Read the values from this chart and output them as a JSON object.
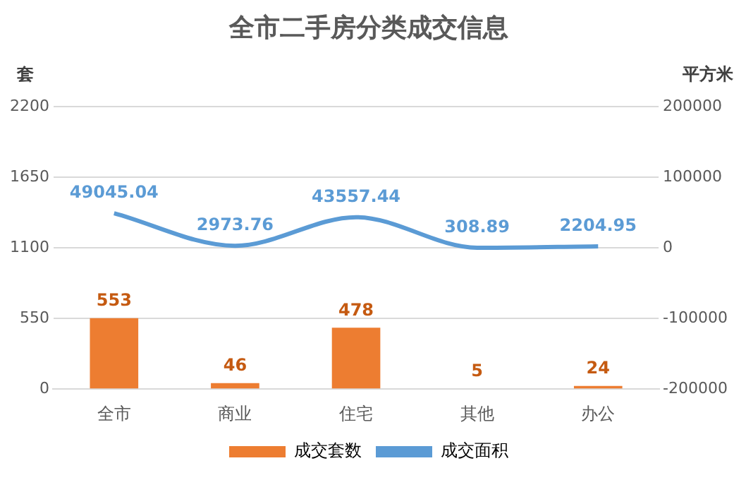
{
  "chart_data": {
    "type": "bar",
    "title": "全市二手房分类成交信息",
    "ylabel": "套",
    "y2label": "平方米",
    "categories": [
      "全市",
      "商业",
      "住宅",
      "其他",
      "办公"
    ],
    "series": [
      {
        "name": "成交套数",
        "color": "#ed7d31",
        "values": [
          553,
          46,
          478,
          5,
          24
        ]
      },
      {
        "name": "成交面积",
        "type": "line",
        "axis": "y2",
        "color": "#5b9bd5",
        "values": [
          49045.04,
          2973.76,
          43557.44,
          308.89,
          2204.95
        ]
      }
    ],
    "ylim": [
      0,
      2200
    ],
    "yticks": [
      0,
      550,
      1100,
      1650,
      2200
    ],
    "y2lim": [
      -200000,
      200000
    ],
    "y2ticks": [
      -200000,
      -100000,
      0,
      100000,
      200000
    ],
    "grid": "y",
    "legend": "bottom",
    "data_labels": true,
    "marker": "none"
  }
}
